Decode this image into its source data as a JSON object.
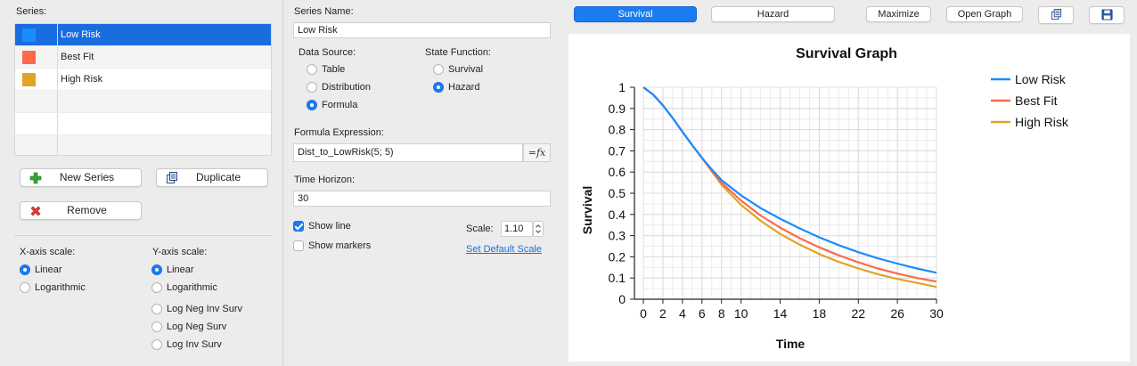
{
  "left": {
    "series_label": "Series:",
    "series": [
      {
        "name": "Low Risk",
        "color": "#1a8cff",
        "selected": true
      },
      {
        "name": "Best Fit",
        "color": "#fd6a4a",
        "selected": false
      },
      {
        "name": "High Risk",
        "color": "#e0a526",
        "selected": false
      }
    ],
    "new_series_label": "New Series",
    "duplicate_label": "Duplicate",
    "remove_label": "Remove",
    "xaxis_scale_label": "X-axis scale:",
    "xaxis_options": [
      "Linear",
      "Logarithmic"
    ],
    "xaxis_selected": "Linear",
    "yaxis_scale_label": "Y-axis scale:",
    "yaxis_options": [
      "Linear",
      "Logarithmic",
      "Log Neg Inv Surv",
      "Log Neg Surv",
      "Log Inv Surv"
    ],
    "yaxis_selected": "Linear"
  },
  "middle": {
    "series_name_label": "Series Name:",
    "series_name_value": "Low Risk",
    "data_source_label": "Data Source:",
    "data_source_options": [
      "Table",
      "Distribution",
      "Formula"
    ],
    "data_source_selected": "Formula",
    "state_function_label": "State Function:",
    "state_function_options": [
      "Survival",
      "Hazard"
    ],
    "state_function_selected": "Hazard",
    "formula_label": "Formula Expression:",
    "formula_value": "Dist_to_LowRisk(5; 5)",
    "fx_label": "=fx",
    "time_horizon_label": "Time Horizon:",
    "time_horizon_value": "30",
    "show_line_label": "Show line",
    "show_line_checked": true,
    "show_markers_label": "Show markers",
    "show_markers_checked": false,
    "scale_label": "Scale:",
    "scale_value": "1.10",
    "set_default_scale_label": "Set Default Scale"
  },
  "toolbar": {
    "survival_label": "Survival",
    "hazard_label": "Hazard",
    "maximize_label": "Maximize",
    "open_graph_label": "Open Graph",
    "active_tab": "Survival"
  },
  "chart_data": {
    "type": "line",
    "title": "Survival Graph",
    "xlabel": "Time",
    "ylabel": "Survival",
    "xlim": [
      0,
      30
    ],
    "ylim": [
      0,
      1
    ],
    "x_ticks": [
      0,
      2,
      4,
      6,
      8,
      10,
      14,
      18,
      22,
      26,
      30
    ],
    "y_ticks": [
      0,
      0.1,
      0.2,
      0.3,
      0.4,
      0.5,
      0.6,
      0.7,
      0.8,
      0.9,
      1
    ],
    "grid": true,
    "legend_position": "top-right",
    "x": [
      0,
      1,
      2,
      3,
      4,
      5,
      6,
      7,
      8,
      10,
      12,
      14,
      16,
      18,
      20,
      22,
      24,
      26,
      28,
      30
    ],
    "series": [
      {
        "name": "Low Risk",
        "color": "#1a8cff",
        "values": [
          1.0,
          0.965,
          0.915,
          0.855,
          0.79,
          0.727,
          0.667,
          0.612,
          0.562,
          0.49,
          0.43,
          0.38,
          0.334,
          0.292,
          0.255,
          0.222,
          0.193,
          0.168,
          0.145,
          0.125
        ]
      },
      {
        "name": "Best Fit",
        "color": "#fd6a4a",
        "values": [
          1.0,
          0.965,
          0.915,
          0.855,
          0.79,
          0.727,
          0.667,
          0.606,
          0.55,
          0.465,
          0.395,
          0.338,
          0.288,
          0.245,
          0.207,
          0.174,
          0.145,
          0.121,
          0.1,
          0.083
        ]
      },
      {
        "name": "High Risk",
        "color": "#e0a526",
        "values": [
          1.0,
          0.965,
          0.915,
          0.855,
          0.79,
          0.727,
          0.667,
          0.603,
          0.54,
          0.445,
          0.37,
          0.308,
          0.257,
          0.213,
          0.176,
          0.145,
          0.118,
          0.096,
          0.077,
          0.058
        ]
      }
    ]
  }
}
